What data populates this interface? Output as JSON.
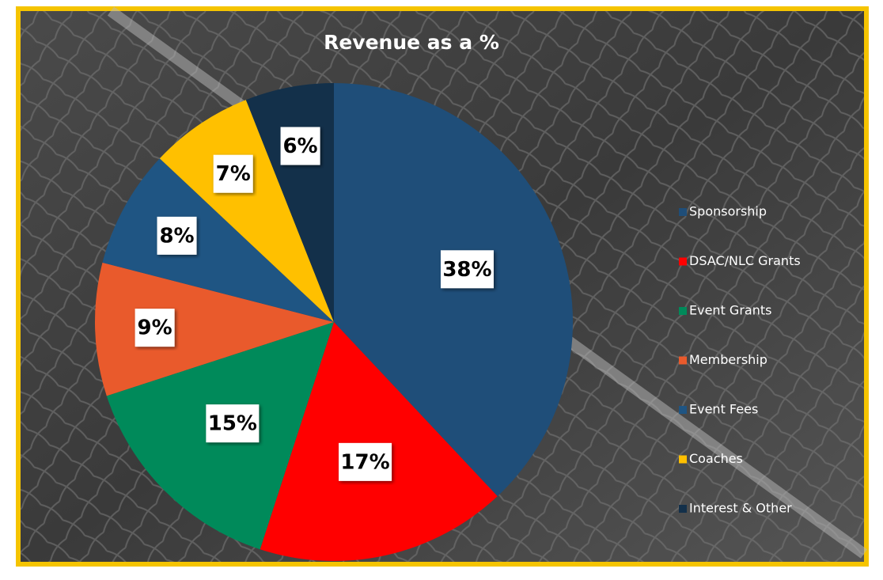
{
  "chart_data": {
    "type": "pie",
    "title": "Revenue as a %",
    "categories": [
      "Sponsorship",
      "DSAC/NLC Grants",
      "Event Grants",
      "Membership",
      "Event Fees",
      "Coaches",
      "Interest & Other"
    ],
    "values": [
      38,
      17,
      15,
      9,
      8,
      7,
      6
    ],
    "value_labels": [
      "38%",
      "17%",
      "15%",
      "9%",
      "8%",
      "7%",
      "6%"
    ],
    "colors": [
      "#1f4e79",
      "#ff0000",
      "#008a5a",
      "#e95a2c",
      "#1f5583",
      "#ffc000",
      "#13304a"
    ],
    "legend": "right"
  }
}
